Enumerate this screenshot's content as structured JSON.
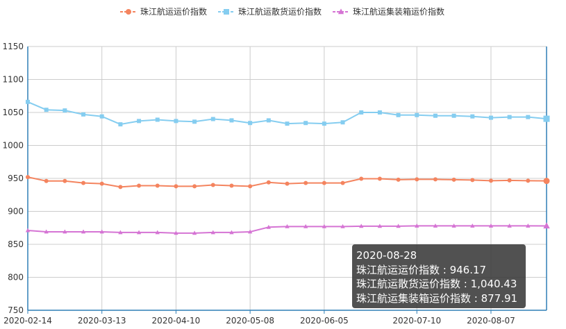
{
  "chart_data": {
    "type": "line",
    "x": [
      "2020-02-14",
      "2020-02-21",
      "2020-02-28",
      "2020-03-06",
      "2020-03-13",
      "2020-03-20",
      "2020-03-27",
      "2020-04-03",
      "2020-04-10",
      "2020-04-17",
      "2020-04-24",
      "2020-05-01",
      "2020-05-08",
      "2020-05-15",
      "2020-05-22",
      "2020-05-29",
      "2020-06-05",
      "2020-06-12",
      "2020-06-19",
      "2020-06-26",
      "2020-07-03",
      "2020-07-10",
      "2020-07-17",
      "2020-07-24",
      "2020-07-31",
      "2020-08-07",
      "2020-08-14",
      "2020-08-21",
      "2020-08-28"
    ],
    "x_tick_labels": [
      "2020-02-14",
      "2020-03-13",
      "2020-04-10",
      "2020-05-08",
      "2020-06-05",
      "2020-07-10",
      "2020-08-07"
    ],
    "ylim": [
      750,
      1150
    ],
    "y_ticks": [
      750,
      800,
      850,
      900,
      950,
      1000,
      1050,
      1100,
      1150
    ],
    "grid": true,
    "legend_position": "top-center",
    "series": [
      {
        "name": "珠江航运运价指数",
        "color": "#f4845f",
        "marker": "circle",
        "values": [
          952,
          946,
          946,
          943,
          942,
          937,
          939,
          939,
          938,
          938,
          940,
          939,
          938,
          944,
          942,
          943,
          943,
          943,
          949.5,
          949.5,
          948,
          948.5,
          948.5,
          948,
          947.5,
          946.5,
          947,
          946.5,
          946.17
        ]
      },
      {
        "name": "珠江航运散货运价指数",
        "color": "#85cdf0",
        "marker": "square",
        "values": [
          1066,
          1054,
          1053,
          1047,
          1044,
          1032,
          1037,
          1039,
          1037,
          1036,
          1040,
          1038,
          1034,
          1038,
          1033,
          1034,
          1033,
          1035,
          1050,
          1050,
          1046,
          1046,
          1045,
          1045,
          1044,
          1042,
          1043,
          1043,
          1040.43
        ]
      },
      {
        "name": "珠江航运集装箱运价指数",
        "color": "#d574d4",
        "marker": "triangle",
        "values": [
          871,
          869,
          869,
          869,
          869,
          868,
          868,
          868,
          867,
          867,
          868,
          868,
          869,
          876,
          877,
          877,
          877,
          877,
          877.5,
          877.5,
          877.5,
          878,
          878,
          878,
          878,
          878,
          878,
          878,
          877.91
        ]
      }
    ]
  },
  "tooltip": {
    "date": "2020-08-28",
    "line1": "珠江航运运价指数 : 946.17",
    "line2": "珠江航运散货运价指数 : 1,040.43",
    "line3": "珠江航运集装箱运价指数 : 877.91"
  },
  "axis_color": "#2f7eb6"
}
